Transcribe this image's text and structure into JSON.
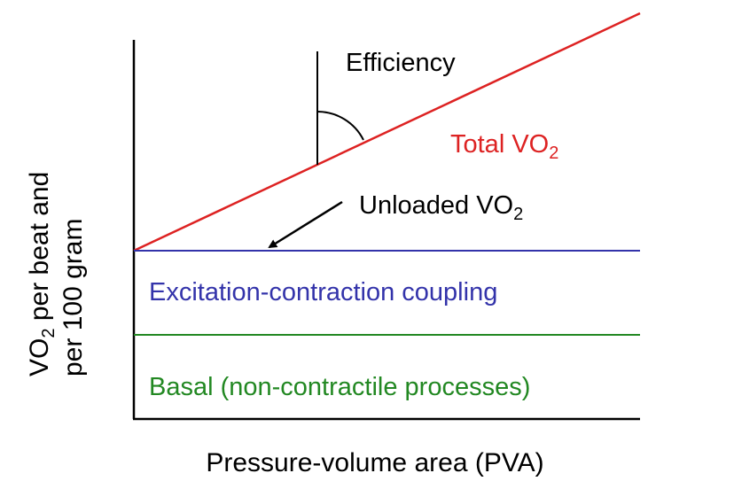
{
  "colors": {
    "axis": "#000000",
    "total_line": "#dd2222",
    "ec_line": "#3333aa",
    "basal_line": "#228822",
    "text": "#000000"
  },
  "axes": {
    "y_label_line1_prefix": "VO",
    "y_label_line1_sub": "2",
    "y_label_line1_suffix": " per beat and",
    "y_label_line2": "per 100 gram",
    "x_label": "Pressure-volume area (PVA)"
  },
  "labels": {
    "efficiency": "Efficiency",
    "total_prefix": "Total VO",
    "total_sub": "2",
    "unloaded_prefix": "Unloaded VO",
    "unloaded_sub": "2",
    "ec_coupling": "Excitation-contraction coupling",
    "basal": "Basal (non-contractile processes)"
  }
}
